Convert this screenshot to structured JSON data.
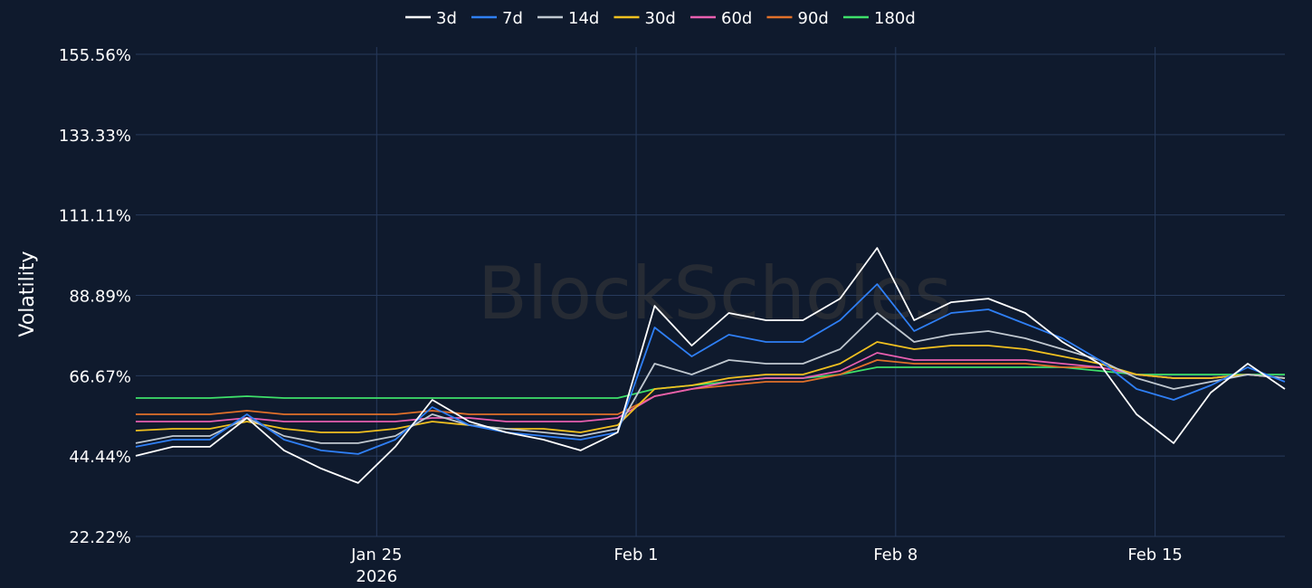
{
  "chart_data": {
    "type": "line",
    "watermark": "BlockScholes",
    "ylabel": "Volatility",
    "ylim": [
      22.22,
      155.56
    ],
    "yticks": [
      "155.56%",
      "133.33%",
      "111.11%",
      "88.89%",
      "66.67%",
      "44.44%",
      "22.22%"
    ],
    "ytick_values": [
      155.56,
      133.33,
      111.11,
      88.89,
      66.67,
      44.44,
      22.22
    ],
    "xlim": [
      "2026-01-18T12:00",
      "2026-02-18T12:00"
    ],
    "xticks": [
      {
        "date": "2026-01-25",
        "label": "Jan 25",
        "sublabel": "2026"
      },
      {
        "date": "2026-02-01",
        "label": "Feb 1",
        "sublabel": ""
      },
      {
        "date": "2026-02-08",
        "label": "Feb 8",
        "sublabel": ""
      },
      {
        "date": "2026-02-15",
        "label": "Feb 15",
        "sublabel": ""
      }
    ],
    "grid": true,
    "legend_position": "top-center",
    "x": [
      "2026-01-18T12:00",
      "2026-01-19T12:00",
      "2026-01-20T12:00",
      "2026-01-21T12:00",
      "2026-01-22T12:00",
      "2026-01-23T12:00",
      "2026-01-24T12:00",
      "2026-01-25T12:00",
      "2026-01-26T12:00",
      "2026-01-27T12:00",
      "2026-01-28T12:00",
      "2026-01-29T12:00",
      "2026-01-30T12:00",
      "2026-01-31T12:00",
      "2026-02-01T12:00",
      "2026-02-02T12:00",
      "2026-02-03T12:00",
      "2026-02-04T12:00",
      "2026-02-05T12:00",
      "2026-02-06T12:00",
      "2026-02-07T12:00",
      "2026-02-08T12:00",
      "2026-02-09T12:00",
      "2026-02-10T12:00",
      "2026-02-11T12:00",
      "2026-02-12T12:00",
      "2026-02-13T12:00",
      "2026-02-14T12:00",
      "2026-02-15T12:00",
      "2026-02-16T12:00",
      "2026-02-17T12:00",
      "2026-02-18T12:00"
    ],
    "series": [
      {
        "name": "3d",
        "color": "#ffffff",
        "values": [
          44.5,
          47,
          47,
          55,
          46,
          41,
          37,
          47,
          60,
          54,
          51,
          49,
          46,
          51,
          86,
          75,
          84,
          82,
          82,
          88,
          102,
          82,
          87,
          88,
          84,
          76,
          70,
          56,
          48,
          62,
          70,
          63
        ]
      },
      {
        "name": "7d",
        "color": "#2f7ff5",
        "values": [
          47,
          49,
          49,
          56,
          49,
          46,
          45,
          49,
          58,
          53,
          51,
          50,
          49,
          51,
          80,
          72,
          78,
          76,
          76,
          82,
          92,
          79,
          84,
          85,
          81,
          77,
          71,
          63,
          60,
          64,
          69,
          65
        ]
      },
      {
        "name": "14d",
        "color": "#c0c8d0",
        "values": [
          48,
          50,
          50,
          55,
          50,
          48,
          48,
          50,
          56,
          53,
          52,
          51,
          50,
          52,
          70,
          67,
          71,
          70,
          70,
          74,
          84,
          76,
          78,
          79,
          77,
          74,
          71,
          66,
          63,
          65,
          67,
          66
        ]
      },
      {
        "name": "30d",
        "color": "#f0c020",
        "values": [
          51.5,
          52,
          52,
          54,
          52,
          51,
          51,
          52,
          54,
          53,
          52,
          52,
          51,
          53,
          63,
          64,
          66,
          67,
          67,
          70,
          76,
          74,
          75,
          75,
          74,
          72,
          70,
          67,
          66,
          66,
          67,
          66
        ]
      },
      {
        "name": "60d",
        "color": "#e85fb0",
        "values": [
          54,
          54,
          54,
          55,
          54,
          54,
          54,
          54,
          55,
          55,
          54,
          54,
          54,
          55,
          61,
          63,
          65,
          66,
          66,
          68,
          73,
          71,
          71,
          71,
          71,
          70,
          69,
          67,
          66,
          66,
          67,
          66
        ]
      },
      {
        "name": "90d",
        "color": "#e0702a",
        "values": [
          56,
          56,
          56,
          57,
          56,
          56,
          56,
          56,
          57,
          56,
          56,
          56,
          56,
          56,
          61,
          63,
          64,
          65,
          65,
          67,
          71,
          70,
          70,
          70,
          70,
          69,
          69,
          67,
          66,
          66,
          67,
          66
        ]
      },
      {
        "name": "180d",
        "color": "#3ee06a",
        "values": [
          60.5,
          60.5,
          60.5,
          61,
          60.5,
          60.5,
          60.5,
          60.5,
          60.5,
          60.5,
          60.5,
          60.5,
          60.5,
          60.5,
          63,
          64,
          65,
          66,
          66,
          67,
          69,
          69,
          69,
          69,
          69,
          69,
          68,
          67,
          67,
          67,
          67,
          67
        ]
      }
    ]
  }
}
